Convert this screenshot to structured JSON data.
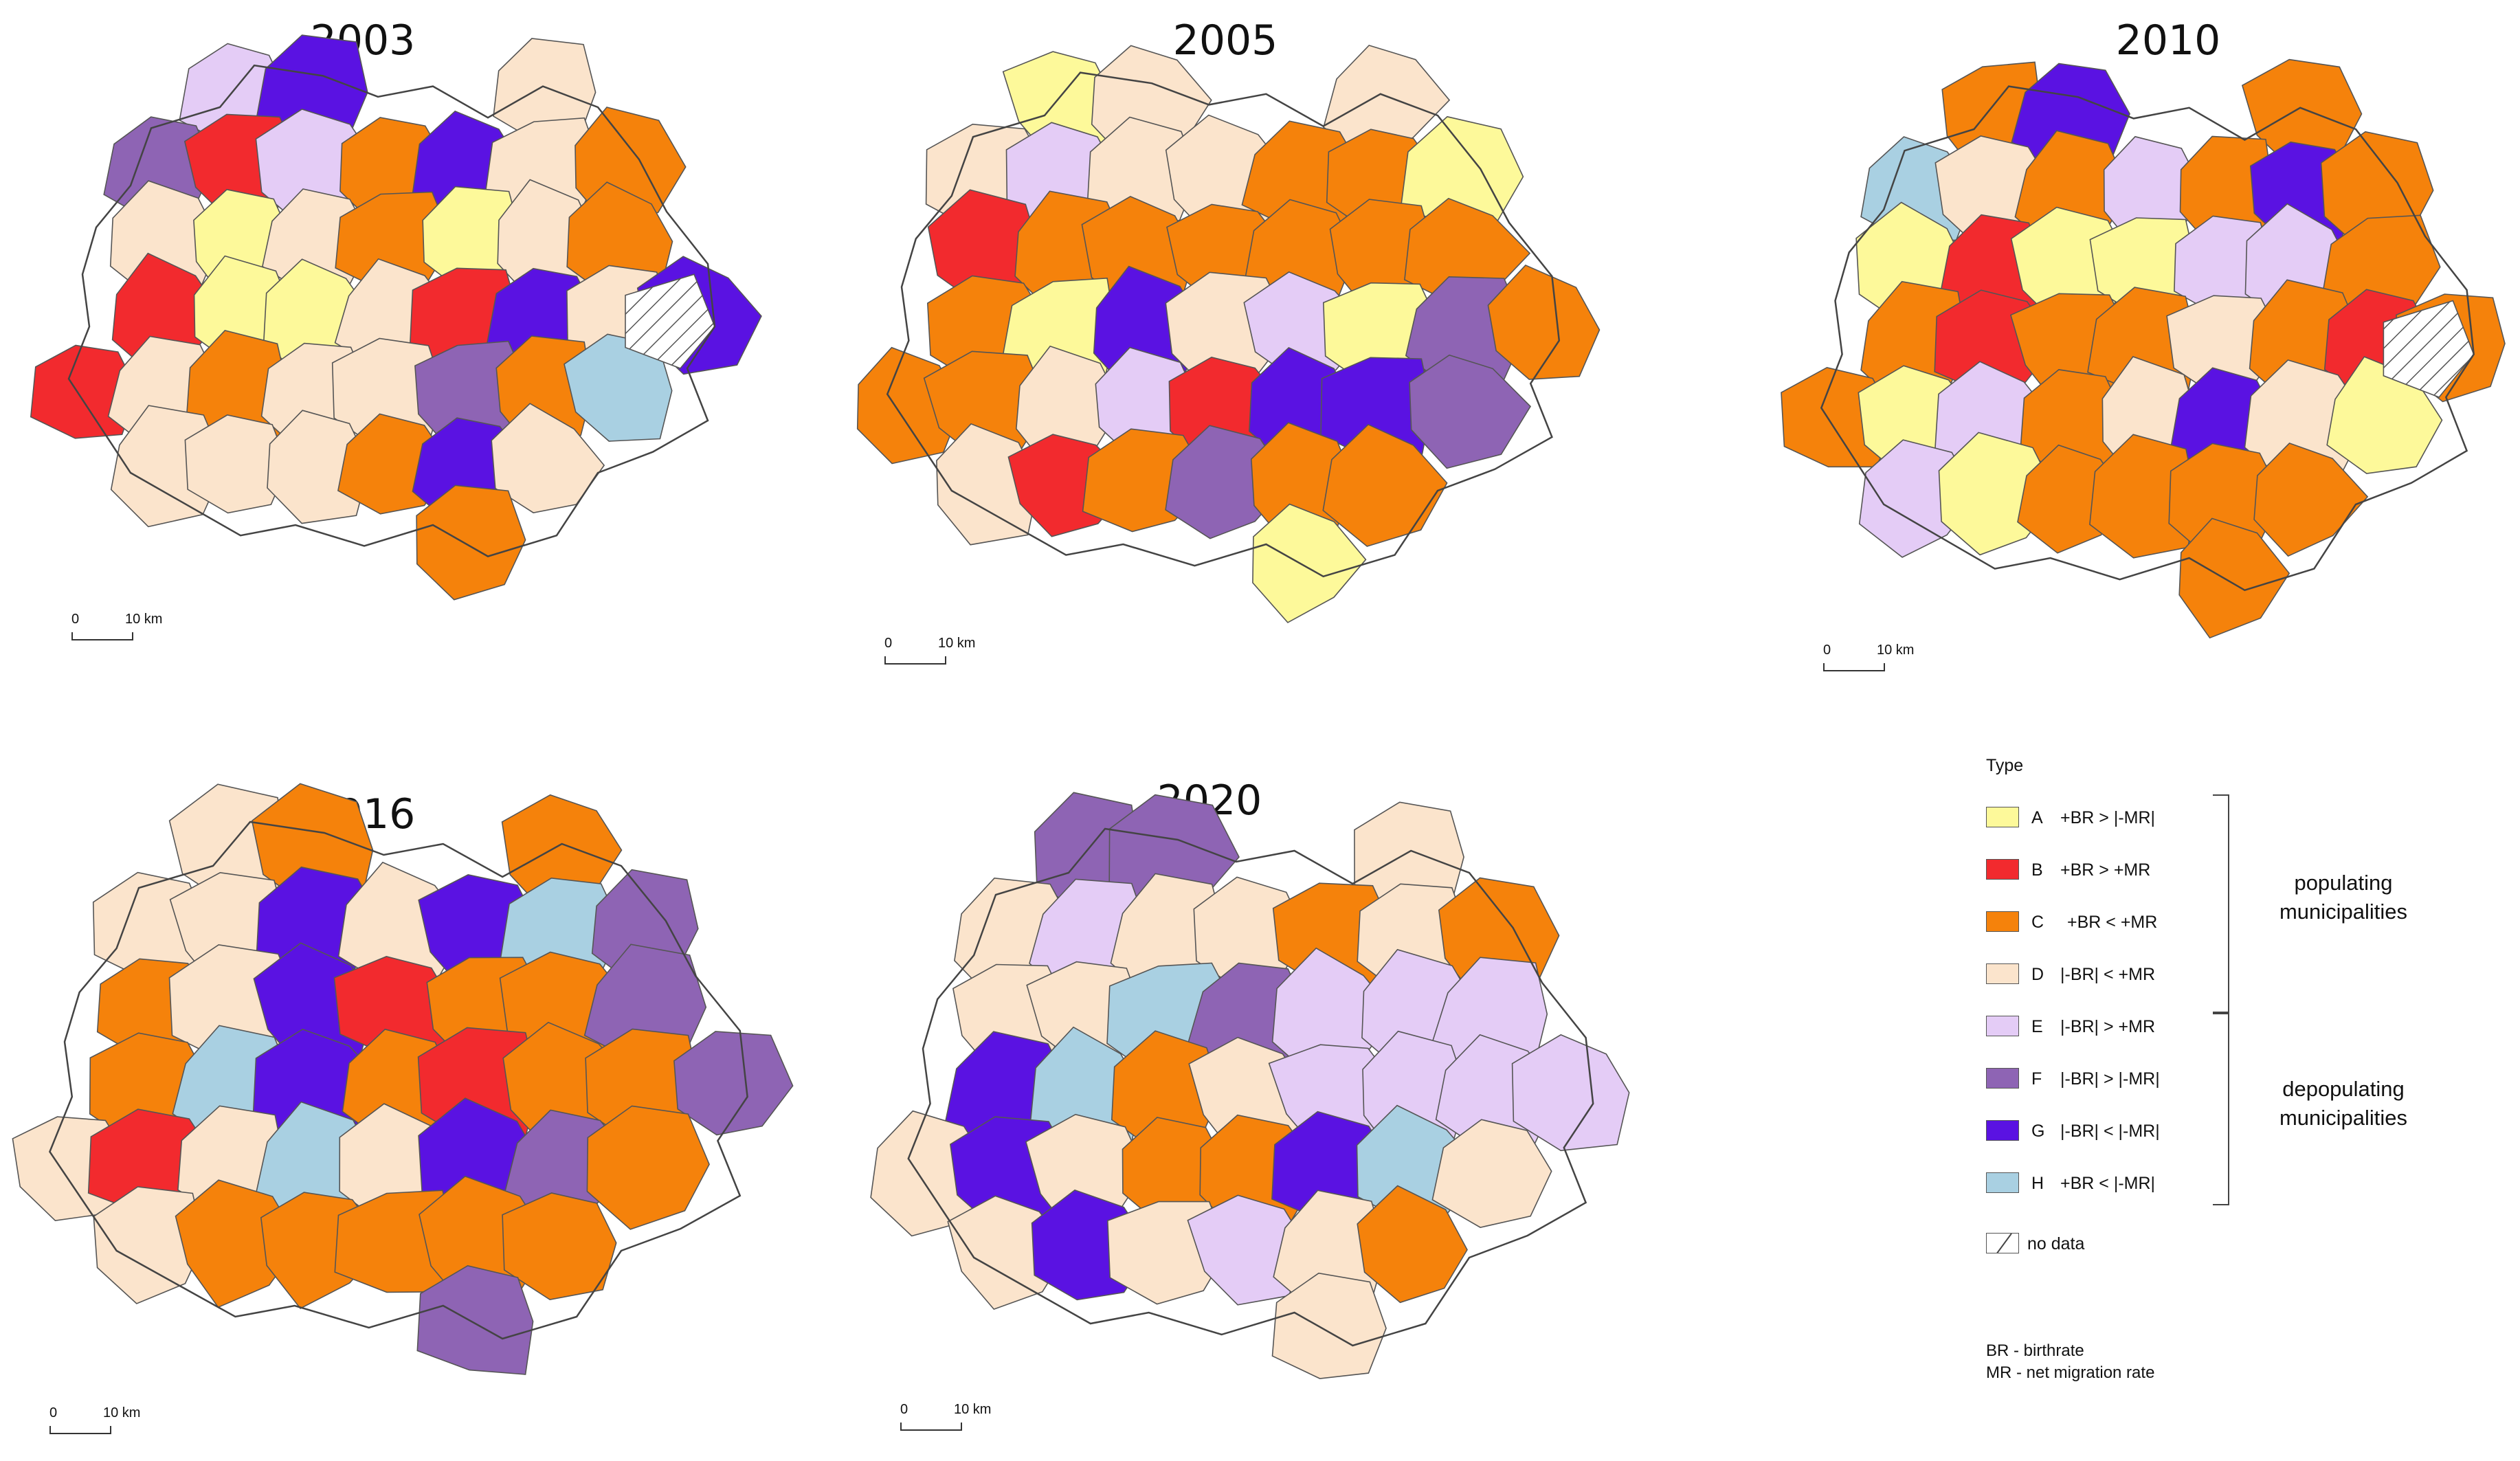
{
  "maps": [
    {
      "year": "2003",
      "scale": {
        "zero": "0",
        "distance": "10 km"
      }
    },
    {
      "year": "2005",
      "scale": {
        "zero": "0",
        "distance": "10 km"
      }
    },
    {
      "year": "2010",
      "scale": {
        "zero": "0",
        "distance": "10 km"
      }
    },
    {
      "year": "2016",
      "scale": {
        "zero": "0",
        "distance": "10 km"
      }
    },
    {
      "year": "2020",
      "scale": {
        "zero": "0",
        "distance": "10 km"
      }
    }
  ],
  "legend": {
    "title": "Type",
    "items": [
      {
        "code": "A",
        "desc": "+BR > |-MR|",
        "color": "#fdf99a"
      },
      {
        "code": "B",
        "desc": "+BR > +MR",
        "color": "#f22a2e"
      },
      {
        "code": "C",
        "desc": "+BR < +MR",
        "color": "#f5820b"
      },
      {
        "code": "D",
        "desc": "|-BR| < +MR",
        "color": "#fbe4cc"
      },
      {
        "code": "E",
        "desc": "|-BR| > +MR",
        "color": "#e4ccf6"
      },
      {
        "code": "F",
        "desc": "|-BR| > |-MR|",
        "color": "#8e64b4"
      },
      {
        "code": "G",
        "desc": "|-BR| < |-MR|",
        "color": "#5a12e2"
      },
      {
        "code": "H",
        "desc": "+BR < |-MR|",
        "color": "#a9d0e2"
      }
    ],
    "no_data_label": "no data",
    "groups": {
      "populating": "populating municipalities",
      "depopulating": "depopulating municipalities"
    },
    "notes": [
      "BR - birthrate",
      "MR - net migration rate"
    ]
  }
}
